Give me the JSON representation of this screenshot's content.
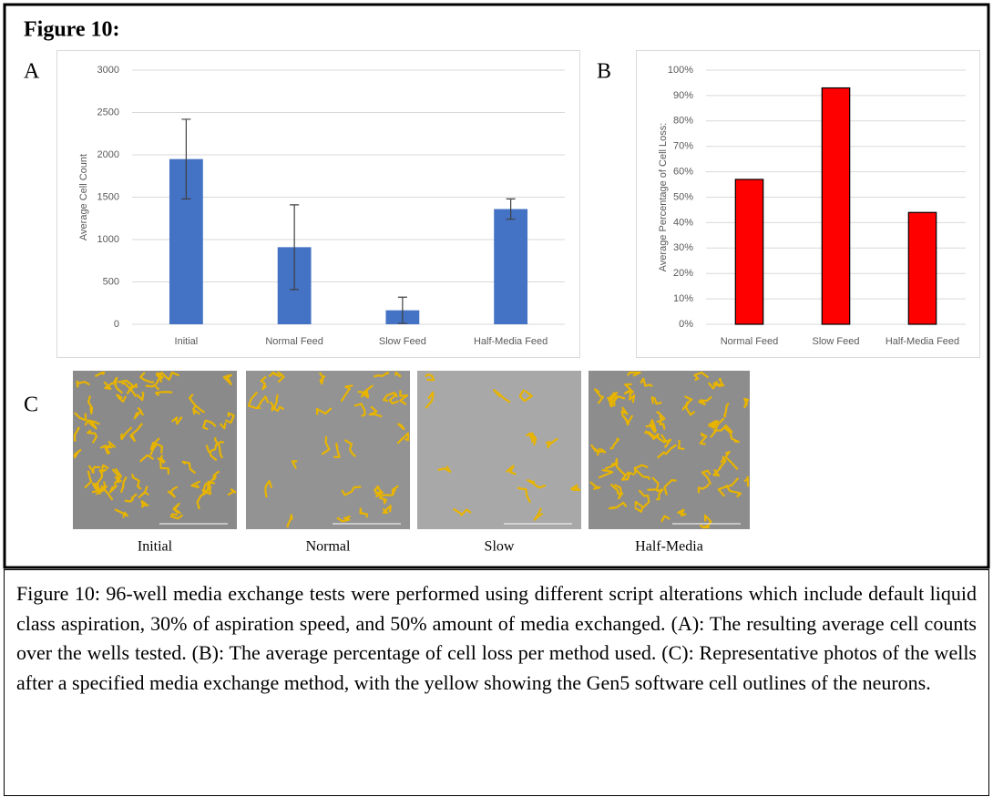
{
  "figure_title": "Figure 10:",
  "panels": {
    "a": "A",
    "b": "B",
    "c": "C"
  },
  "chart_data": [
    {
      "type": "bar",
      "y_label": "Average Cell Count",
      "categories": [
        "Initial",
        "Normal Feed",
        "Slow Feed",
        "Half-Media Feed"
      ],
      "values": [
        1950,
        910,
        165,
        1360
      ],
      "errors": [
        470,
        500,
        155,
        120
      ],
      "color": "#4472c4",
      "ylim": [
        0,
        3000
      ],
      "yticks": [
        0,
        500,
        1000,
        1500,
        2000,
        2500,
        3000
      ],
      "grid": true
    },
    {
      "type": "bar",
      "y_label": "Average Percentage of Cell Loss:",
      "categories": [
        "Normal Feed",
        "Slow Feed",
        "Half-Media Feed"
      ],
      "values": [
        57,
        93,
        44
      ],
      "color": "#ff0000",
      "edgecolor": "#000000",
      "ylim": [
        0,
        100
      ],
      "yticks": [
        {
          "value": 0,
          "label": "0%"
        },
        {
          "value": 10,
          "label": "10%"
        },
        {
          "value": 20,
          "label": "20%"
        },
        {
          "value": 30,
          "label": "30%"
        },
        {
          "value": 40,
          "label": "40%"
        },
        {
          "value": 50,
          "label": "50%"
        },
        {
          "value": 60,
          "label": "60%"
        },
        {
          "value": 70,
          "label": "70%"
        },
        {
          "value": 80,
          "label": "80%"
        },
        {
          "value": 90,
          "label": "90%"
        },
        {
          "value": 100,
          "label": "100%"
        }
      ],
      "grid": true
    }
  ],
  "photos": {
    "labels": [
      "Initial",
      "Normal",
      "Slow",
      "Half-Media"
    ]
  },
  "caption": "Figure 10: 96-well media exchange tests were performed using different script alterations which include default liquid class aspiration, 30% of aspiration speed, and 50% amount of media exchanged. (A): The resulting average cell counts over the wells tested. (B): The average percentage of cell loss per method used. (C): Representative photos of the wells after a specified media exchange method, with the yellow showing the Gen5 software cell outlines of the neurons."
}
